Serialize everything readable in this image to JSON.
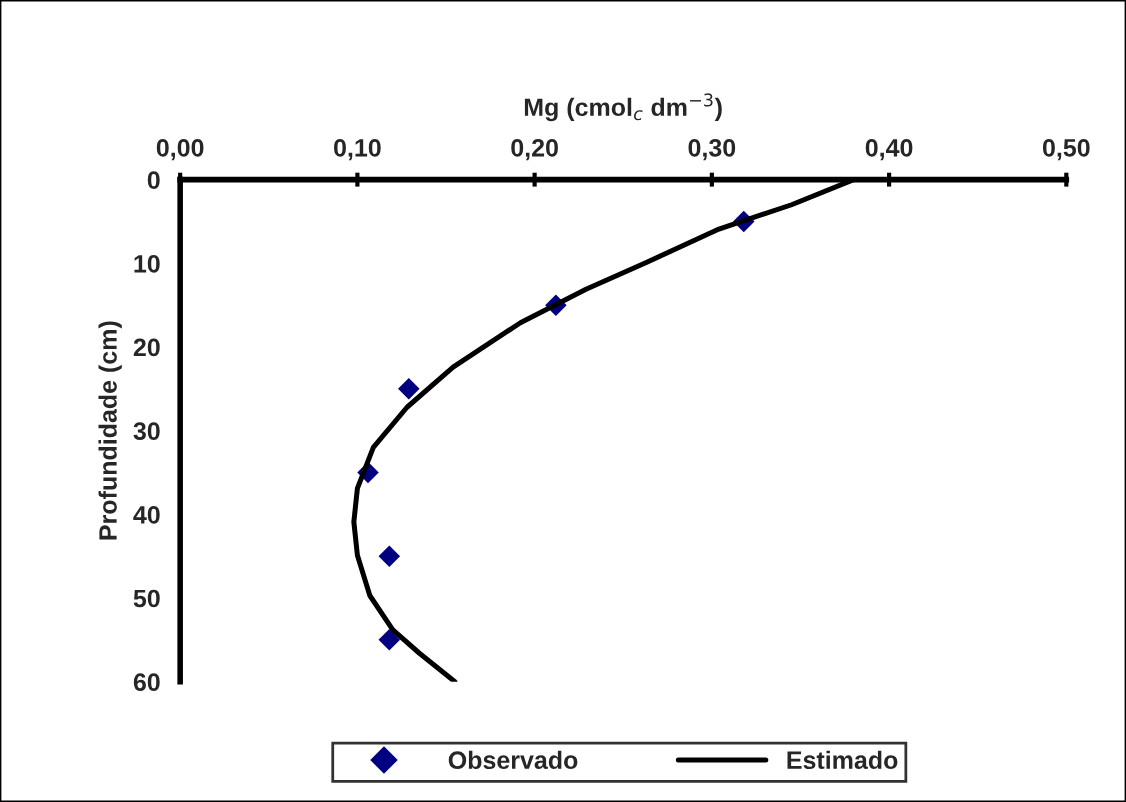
{
  "chart_data": {
    "type": "scatter",
    "xlabel": "Mg (cmol$_{c}$ dm$^{−3}$)",
    "ylabel": "Profundidade (cm)",
    "xlim": [
      0,
      0.5
    ],
    "xticks": [
      {
        "value": 0,
        "label": "0,00"
      },
      {
        "value": 0.1,
        "label": "0,10"
      },
      {
        "value": 0.2,
        "label": "0,20"
      },
      {
        "value": 0.3,
        "label": "0,30"
      },
      {
        "value": 0.4,
        "label": "0,40"
      },
      {
        "value": 0.5,
        "label": "0,50"
      }
    ],
    "ylim": [
      60,
      0
    ],
    "yticks": [
      0,
      10,
      20,
      30,
      40,
      50,
      60
    ],
    "grid": false,
    "legend": "bottom",
    "series": [
      {
        "name": "Observado",
        "marker": "diamond",
        "color": "#000080",
        "x": [
          0.318,
          0.212,
          0.129,
          0.106,
          0.118,
          0.118
        ],
        "values": [
          5,
          15,
          25,
          35,
          45,
          55
        ]
      },
      {
        "name": "Estimado",
        "type": "line",
        "marker": "none",
        "line_style": "solid",
        "color": "#000000",
        "x": [
          0.38,
          0.345,
          0.304,
          0.263,
          0.229,
          0.192,
          0.154,
          0.128,
          0.109,
          0.1,
          0.098,
          0.1,
          0.107,
          0.12,
          0.135,
          0.155
        ],
        "values": [
          0,
          3,
          5.9,
          9.9,
          13.1,
          17.1,
          22.4,
          27.2,
          32,
          36.9,
          40.9,
          44.9,
          49.7,
          53.8,
          56.6,
          60
        ]
      }
    ]
  }
}
